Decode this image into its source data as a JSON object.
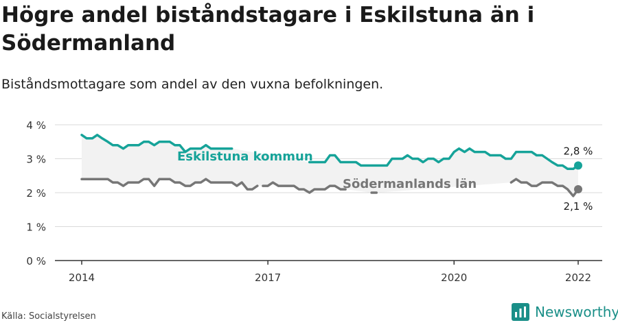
{
  "title": "Högre andel biståndstagare i Eskilstuna än i Södermanland",
  "subtitle": "Biståndsmottagare som andel av den vuxna befolkningen.",
  "source": "Källa: Socialstyrelsen",
  "brand": {
    "name": "Newsworthy",
    "icon": "newsworthy-logo-icon"
  },
  "colors": {
    "eskilstuna": "#16a399",
    "sodermanland": "#767676",
    "band": "#f2f2f2",
    "grid": "#d9d9d9",
    "axis": "#333333",
    "brand": "#1a8f88"
  },
  "chart_data": {
    "type": "line",
    "ylim": [
      0,
      4
    ],
    "yticks": [
      0,
      1,
      2,
      3,
      4
    ],
    "ytick_labels": [
      "0 %",
      "1 %",
      "2 %",
      "3 %",
      "4 %"
    ],
    "xlim": [
      2014,
      2022.2
    ],
    "xticks": [
      2014,
      2017,
      2020,
      2022
    ],
    "xtick_labels": [
      "2014",
      "2017",
      "2020",
      "2022"
    ],
    "grid": true,
    "shaded_between_series": true,
    "series": [
      {
        "name": "Eskilstuna kommun",
        "label": "Eskilstuna kommun",
        "end_label": "2,8 %",
        "points": [
          [
            2014.0,
            3.7
          ],
          [
            2014.08,
            3.6
          ],
          [
            2014.17,
            3.6
          ],
          [
            2014.25,
            3.7
          ],
          [
            2014.33,
            3.6
          ],
          [
            2014.42,
            3.5
          ],
          [
            2014.5,
            3.4
          ],
          [
            2014.58,
            3.4
          ],
          [
            2014.67,
            3.3
          ],
          [
            2014.75,
            3.4
          ],
          [
            2014.83,
            3.4
          ],
          [
            2014.92,
            3.4
          ],
          [
            2015.0,
            3.5
          ],
          [
            2015.08,
            3.5
          ],
          [
            2015.17,
            3.4
          ],
          [
            2015.25,
            3.5
          ],
          [
            2015.33,
            3.5
          ],
          [
            2015.42,
            3.5
          ],
          [
            2015.5,
            3.4
          ],
          [
            2015.58,
            3.4
          ],
          [
            2015.67,
            3.2
          ],
          [
            2015.75,
            3.3
          ],
          [
            2015.83,
            3.3
          ],
          [
            2015.92,
            3.3
          ],
          [
            2016.0,
            3.4
          ],
          [
            2016.08,
            3.3
          ],
          [
            2016.17,
            3.3
          ],
          [
            2016.25,
            3.3
          ],
          [
            2016.33,
            3.3
          ],
          [
            2016.42,
            3.3
          ],
          null,
          [
            2017.67,
            2.9
          ],
          [
            2017.75,
            2.9
          ],
          [
            2017.83,
            2.9
          ],
          [
            2017.92,
            2.9
          ],
          [
            2018.0,
            3.1
          ],
          [
            2018.08,
            3.1
          ],
          [
            2018.17,
            2.9
          ],
          [
            2018.25,
            2.9
          ],
          [
            2018.33,
            2.9
          ],
          [
            2018.42,
            2.9
          ],
          [
            2018.5,
            2.8
          ],
          [
            2018.58,
            2.8
          ],
          [
            2018.67,
            2.8
          ],
          [
            2018.75,
            2.8
          ],
          [
            2018.83,
            2.8
          ],
          [
            2018.92,
            2.8
          ],
          [
            2019.0,
            3.0
          ],
          [
            2019.08,
            3.0
          ],
          [
            2019.17,
            3.0
          ],
          [
            2019.25,
            3.1
          ],
          [
            2019.33,
            3.0
          ],
          [
            2019.42,
            3.0
          ],
          [
            2019.5,
            2.9
          ],
          [
            2019.58,
            3.0
          ],
          [
            2019.67,
            3.0
          ],
          [
            2019.75,
            2.9
          ],
          [
            2019.83,
            3.0
          ],
          [
            2019.92,
            3.0
          ],
          [
            2020.0,
            3.2
          ],
          [
            2020.08,
            3.3
          ],
          [
            2020.17,
            3.2
          ],
          [
            2020.25,
            3.3
          ],
          [
            2020.33,
            3.2
          ],
          [
            2020.42,
            3.2
          ],
          [
            2020.5,
            3.2
          ],
          [
            2020.58,
            3.1
          ],
          [
            2020.67,
            3.1
          ],
          [
            2020.75,
            3.1
          ],
          [
            2020.83,
            3.0
          ],
          [
            2020.92,
            3.0
          ],
          [
            2021.0,
            3.2
          ],
          [
            2021.08,
            3.2
          ],
          [
            2021.17,
            3.2
          ],
          [
            2021.25,
            3.2
          ],
          [
            2021.33,
            3.1
          ],
          [
            2021.42,
            3.1
          ],
          [
            2021.5,
            3.0
          ],
          [
            2021.58,
            2.9
          ],
          [
            2021.67,
            2.8
          ],
          [
            2021.75,
            2.8
          ],
          [
            2021.83,
            2.7
          ],
          [
            2021.92,
            2.7
          ],
          [
            2022.0,
            2.8
          ]
        ]
      },
      {
        "name": "Södermanlands län",
        "label": "Södermanlands län",
        "end_label": "2,1 %",
        "points": [
          [
            2014.0,
            2.4
          ],
          [
            2014.08,
            2.4
          ],
          [
            2014.17,
            2.4
          ],
          [
            2014.25,
            2.4
          ],
          [
            2014.33,
            2.4
          ],
          [
            2014.42,
            2.4
          ],
          [
            2014.5,
            2.3
          ],
          [
            2014.58,
            2.3
          ],
          [
            2014.67,
            2.2
          ],
          [
            2014.75,
            2.3
          ],
          [
            2014.83,
            2.3
          ],
          [
            2014.92,
            2.3
          ],
          [
            2015.0,
            2.4
          ],
          [
            2015.08,
            2.4
          ],
          [
            2015.17,
            2.2
          ],
          [
            2015.25,
            2.4
          ],
          [
            2015.33,
            2.4
          ],
          [
            2015.42,
            2.4
          ],
          [
            2015.5,
            2.3
          ],
          [
            2015.58,
            2.3
          ],
          [
            2015.67,
            2.2
          ],
          [
            2015.75,
            2.2
          ],
          [
            2015.83,
            2.3
          ],
          [
            2015.92,
            2.3
          ],
          [
            2016.0,
            2.4
          ],
          [
            2016.08,
            2.3
          ],
          [
            2016.17,
            2.3
          ],
          [
            2016.25,
            2.3
          ],
          [
            2016.33,
            2.3
          ],
          [
            2016.42,
            2.3
          ],
          [
            2016.5,
            2.2
          ],
          [
            2016.58,
            2.3
          ],
          [
            2016.67,
            2.1
          ],
          [
            2016.75,
            2.1
          ],
          [
            2016.83,
            2.2
          ],
          null,
          [
            2016.92,
            2.2
          ],
          [
            2017.0,
            2.2
          ],
          [
            2017.08,
            2.3
          ],
          [
            2017.17,
            2.2
          ],
          [
            2017.25,
            2.2
          ],
          [
            2017.33,
            2.2
          ],
          [
            2017.42,
            2.2
          ],
          [
            2017.5,
            2.1
          ],
          [
            2017.58,
            2.1
          ],
          [
            2017.67,
            2.0
          ],
          [
            2017.75,
            2.1
          ],
          [
            2017.83,
            2.1
          ],
          [
            2017.92,
            2.1
          ],
          [
            2018.0,
            2.2
          ],
          [
            2018.08,
            2.2
          ],
          [
            2018.17,
            2.1
          ],
          [
            2018.25,
            2.1
          ],
          null,
          [
            2018.67,
            2.0
          ],
          [
            2018.75,
            2.0
          ],
          null,
          [
            2020.92,
            2.3
          ],
          [
            2021.0,
            2.4
          ],
          [
            2021.08,
            2.3
          ],
          [
            2021.17,
            2.3
          ],
          [
            2021.25,
            2.2
          ],
          [
            2021.33,
            2.2
          ],
          [
            2021.42,
            2.3
          ],
          [
            2021.5,
            2.3
          ],
          [
            2021.58,
            2.3
          ],
          [
            2021.67,
            2.2
          ],
          [
            2021.75,
            2.2
          ],
          [
            2021.83,
            2.1
          ],
          [
            2021.92,
            1.9
          ],
          [
            2022.0,
            2.1
          ]
        ]
      }
    ]
  }
}
